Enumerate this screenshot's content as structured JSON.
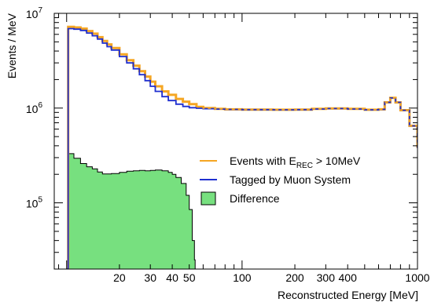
{
  "chart_data": {
    "type": "line",
    "xlabel": "Reconstructed Energy [MeV]",
    "ylabel": "Events / MeV",
    "x_scale": "log",
    "y_scale": "log",
    "xlim": [
      8.5,
      1000
    ],
    "ylim": [
      20000,
      10000000
    ],
    "x_ticks": [
      {
        "value": 20,
        "label": "20"
      },
      {
        "value": 30,
        "label": "30"
      },
      {
        "value": 40,
        "label": "40"
      },
      {
        "value": 50,
        "label": "50"
      },
      {
        "value": 100,
        "label": "100"
      },
      {
        "value": 200,
        "label": "200"
      },
      {
        "value": 300,
        "label": "300"
      },
      {
        "value": 400,
        "label": "400"
      },
      {
        "value": 1000,
        "label": "1000"
      }
    ],
    "y_ticks": [
      {
        "value": 100000,
        "base": "10",
        "exp": "5"
      },
      {
        "value": 1000000,
        "base": "10",
        "exp": "6"
      },
      {
        "value": 10000000,
        "base": "10",
        "exp": "7"
      }
    ],
    "legend": {
      "position": "center-right",
      "entries": [
        {
          "label_main": "Events with E",
          "label_sub": "REC",
          "label_tail": " > 10MeV",
          "color": "#f5a623",
          "style": "line"
        },
        {
          "label_main": "Tagged by Muon System",
          "label_sub": "",
          "label_tail": "",
          "color": "#1f2fd0",
          "style": "line"
        },
        {
          "label_main": "Difference",
          "label_sub": "",
          "label_tail": "",
          "color": "#77e07f",
          "style": "fill"
        }
      ]
    },
    "series": [
      {
        "name": "Events with E_REC > 10MeV",
        "color": "#f5a623",
        "x": [
          10,
          10.2,
          11,
          12,
          13,
          14,
          15,
          16,
          17,
          18,
          20,
          22,
          24,
          26,
          28,
          30,
          32,
          35,
          38,
          42,
          46,
          50,
          55,
          60,
          70,
          80,
          100,
          150,
          200,
          250,
          300,
          400,
          500,
          600,
          650,
          700,
          750,
          800,
          900,
          1000
        ],
        "y": [
          20000,
          7200000,
          7100000,
          6900000,
          6500000,
          6100000,
          5600000,
          5100000,
          4700000,
          4300000,
          3700000,
          3200000,
          2800000,
          2450000,
          2150000,
          1900000,
          1700000,
          1500000,
          1380000,
          1250000,
          1170000,
          1100000,
          1030000,
          1000000,
          980000,
          970000,
          965000,
          960000,
          965000,
          980000,
          990000,
          980000,
          960000,
          970000,
          1150000,
          1280000,
          1150000,
          950000,
          650000,
          380000
        ]
      },
      {
        "name": "Tagged by Muon System",
        "color": "#1f2fd0",
        "x": [
          10,
          10.2,
          11,
          12,
          13,
          14,
          15,
          16,
          17,
          18,
          20,
          22,
          24,
          26,
          28,
          30,
          32,
          35,
          38,
          42,
          46,
          50,
          55,
          60,
          70,
          80,
          100,
          150,
          200,
          250,
          300,
          400,
          500,
          600,
          650,
          700,
          750,
          800,
          900,
          1000
        ],
        "y": [
          20000,
          6900000,
          6800000,
          6600000,
          6200000,
          5800000,
          5350000,
          4850000,
          4450000,
          4100000,
          3500000,
          3000000,
          2600000,
          2250000,
          1950000,
          1700000,
          1500000,
          1320000,
          1200000,
          1100000,
          1040000,
          1010000,
          995000,
          985000,
          975000,
          968000,
          963000,
          958000,
          963000,
          978000,
          988000,
          978000,
          958000,
          968000,
          1148000,
          1278000,
          1148000,
          948000,
          648000,
          378000
        ]
      },
      {
        "name": "Difference",
        "color": "#77e07f",
        "x": [
          10,
          10.2,
          11,
          12,
          13,
          14,
          15,
          16,
          18,
          20,
          22,
          24,
          26,
          28,
          30,
          32,
          35,
          38,
          40,
          42,
          45,
          48,
          50,
          52,
          53.5,
          54,
          55
        ],
        "y": [
          20000,
          330000,
          295000,
          260000,
          240000,
          228000,
          212000,
          202000,
          204000,
          210000,
          216000,
          218000,
          220000,
          218000,
          220000,
          222000,
          218000,
          210000,
          200000,
          185000,
          160000,
          120000,
          85000,
          40000,
          25000,
          20000,
          20000
        ]
      }
    ]
  }
}
